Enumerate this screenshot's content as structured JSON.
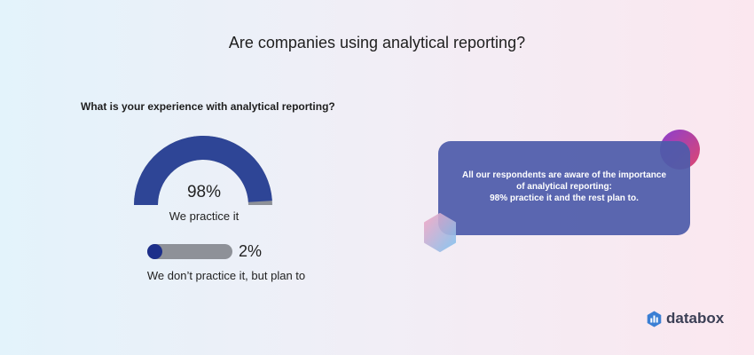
{
  "page": {
    "title": "Are companies using analytical reporting?"
  },
  "chart_data": [
    {
      "type": "gauge",
      "question": "What is your experience with analytical reporting?",
      "label": "We practice it",
      "value": 98,
      "value_text": "98%",
      "max": 100,
      "colors": {
        "fill": "#2e4596",
        "track": "#8e9198"
      }
    },
    {
      "type": "bar",
      "label": "We don’t practice it, but plan to",
      "value": 2,
      "value_text": "2%",
      "max": 100,
      "colors": {
        "fill": "#1d2f8a",
        "track": "#8e9198"
      }
    }
  ],
  "note": {
    "lines": [
      "All our respondents are aware of the importance",
      "of analytical reporting:",
      "98% practice it and the rest plan to."
    ]
  },
  "brand": {
    "name": "databox",
    "icon": "databox-logo-icon"
  }
}
